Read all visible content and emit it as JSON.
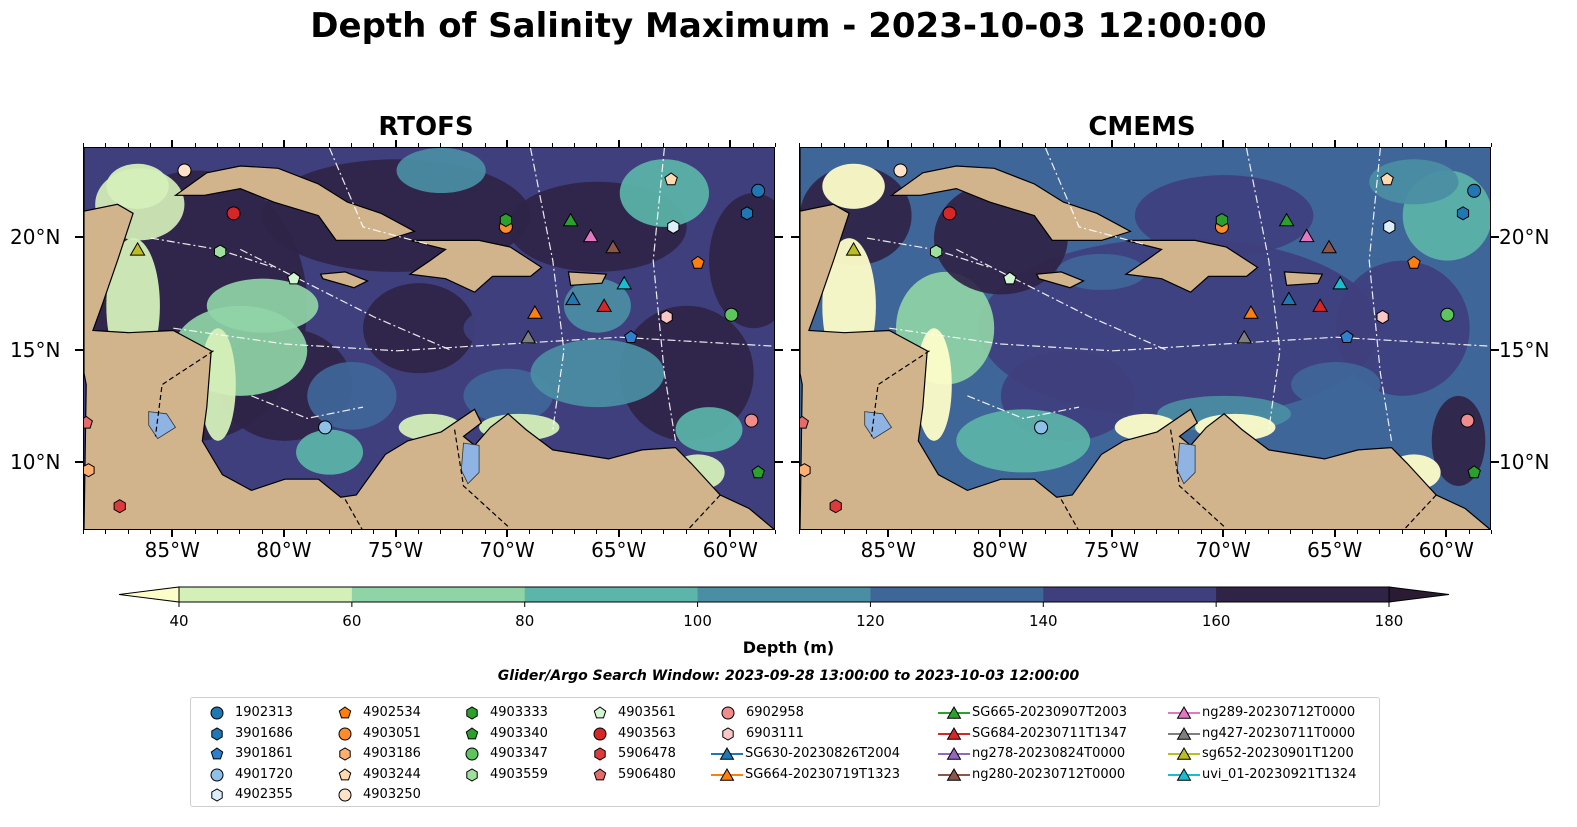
{
  "title": "Depth of Salinity Maximum - 2023-10-03 12:00:00",
  "panels": [
    {
      "title": "RTOFS"
    },
    {
      "title": "CMEMS"
    }
  ],
  "colorbar": {
    "label": "Depth (m)",
    "ticks": [
      "40",
      "60",
      "80",
      "100",
      "120",
      "140",
      "160",
      "180"
    ],
    "colors": [
      "#d5efb9",
      "#8fd4a6",
      "#5bb5a8",
      "#4a8ea3",
      "#3f6698",
      "#3f3f7e",
      "#2f2446"
    ],
    "extend_low_color": "#fdfdc9",
    "extend_high_color": "#2a1b32"
  },
  "search_window": "Glider/Argo Search Window: 2023-09-28 13:00:00 to 2023-10-03 12:00:00",
  "axes": {
    "x_ticks": [
      "85°W",
      "80°W",
      "75°W",
      "70°W",
      "65°W",
      "60°W"
    ],
    "y_ticks": [
      "20°N",
      "15°N",
      "10°N"
    ]
  },
  "map_colors": {
    "land": "#d2b48c",
    "lake": "#8fb4e3"
  },
  "chart_data": {
    "type": "map-contour",
    "variable": "Depth of Salinity Maximum",
    "units": "m",
    "levels": [
      40,
      60,
      80,
      100,
      120,
      140,
      160,
      180
    ],
    "lon_range": [
      -89,
      -58
    ],
    "lat_range": [
      7,
      24
    ],
    "x_ticks": [
      -85,
      -80,
      -75,
      -70,
      -65,
      -60
    ],
    "y_ticks": [
      20,
      15,
      10
    ]
  },
  "markers": [
    {
      "name": "1902313",
      "shape": "circle",
      "color": "#1f77b4",
      "lon": -58.8,
      "lat": 22.1
    },
    {
      "name": "3901686",
      "shape": "hexagon",
      "color": "#1f77b4",
      "lon": -59.3,
      "lat": 21.1
    },
    {
      "name": "3901861",
      "shape": "pentagon",
      "color": "#2f7fd0",
      "lon": -64.5,
      "lat": 15.6
    },
    {
      "name": "4901720",
      "shape": "circle",
      "color": "#8fc1e8",
      "lon": -78.2,
      "lat": 11.6
    },
    {
      "name": "4902355",
      "shape": "hexagon",
      "color": "#dbeefa",
      "lon": -62.6,
      "lat": 20.5
    },
    {
      "name": "4902534",
      "shape": "pentagon",
      "color": "#ff7f0e",
      "lon": -61.5,
      "lat": 18.9
    },
    {
      "name": "4903051",
      "shape": "circle",
      "color": "#ff8c2a",
      "lon": -70.1,
      "lat": 20.5
    },
    {
      "name": "4903186",
      "shape": "hexagon",
      "color": "#ffb070",
      "lon": -88.8,
      "lat": 9.7
    },
    {
      "name": "4903244",
      "shape": "pentagon",
      "color": "#ffd9b0",
      "lon": -62.7,
      "lat": 22.6
    },
    {
      "name": "4903250",
      "shape": "circle",
      "color": "#ffe3c8",
      "lon": -84.5,
      "lat": 23.0
    },
    {
      "name": "4903333",
      "shape": "hexagon",
      "color": "#2ca02c",
      "lon": -70.1,
      "lat": 20.8
    },
    {
      "name": "4903340",
      "shape": "pentagon",
      "color": "#2ca02c",
      "lon": -58.8,
      "lat": 9.6
    },
    {
      "name": "4903347",
      "shape": "circle",
      "color": "#5ec45e",
      "lon": -60.0,
      "lat": 16.6
    },
    {
      "name": "4903559",
      "shape": "hexagon",
      "color": "#9ee09e",
      "lon": -82.9,
      "lat": 19.4
    },
    {
      "name": "4903561",
      "shape": "pentagon",
      "color": "#d2f5d2",
      "lon": -79.6,
      "lat": 18.2
    },
    {
      "name": "4903563",
      "shape": "circle",
      "color": "#d62728",
      "lon": -82.3,
      "lat": 21.1
    },
    {
      "name": "5906478",
      "shape": "hexagon",
      "color": "#dd3b3b",
      "lon": -87.4,
      "lat": 8.1
    },
    {
      "name": "5906480",
      "shape": "pentagon",
      "color": "#e56a6a",
      "lon": -88.9,
      "lat": 11.8
    },
    {
      "name": "6902958",
      "shape": "circle",
      "color": "#f08c8c",
      "lon": -59.1,
      "lat": 11.9
    },
    {
      "name": "6903111",
      "shape": "hexagon",
      "color": "#fbc6c6",
      "lon": -62.9,
      "lat": 16.5
    },
    {
      "name": "SG630-20230826T2004",
      "shape": "triangle",
      "color": "#1f77b4",
      "lon": -67.1,
      "lat": 17.3
    },
    {
      "name": "SG664-20230719T1323",
      "shape": "triangle",
      "color": "#ff7f0e",
      "lon": -68.8,
      "lat": 16.7
    },
    {
      "name": "SG665-20230907T2003",
      "shape": "triangle",
      "color": "#2ca02c",
      "lon": -67.2,
      "lat": 20.8
    },
    {
      "name": "SG684-20230711T1347",
      "shape": "triangle",
      "color": "#d62728",
      "lon": -65.7,
      "lat": 17.0
    },
    {
      "name": "ng278-20230824T0000",
      "shape": "triangle",
      "color": "#9467bd",
      "lon": null,
      "lat": null
    },
    {
      "name": "ng280-20230712T0000",
      "shape": "triangle",
      "color": "#8c564b",
      "lon": -65.3,
      "lat": 19.6
    },
    {
      "name": "ng289-20230712T0000",
      "shape": "triangle",
      "color": "#e377c2",
      "lon": -66.3,
      "lat": 20.1
    },
    {
      "name": "ng427-20230711T0000",
      "shape": "triangle",
      "color": "#7f7f7f",
      "lon": -69.1,
      "lat": 15.6
    },
    {
      "name": "sg652-20230901T1200",
      "shape": "triangle",
      "color": "#bcbd22",
      "lon": -86.6,
      "lat": 19.5
    },
    {
      "name": "uvi_01-20230921T1324",
      "shape": "triangle",
      "color": "#17becf",
      "lon": -64.8,
      "lat": 18.0
    }
  ]
}
